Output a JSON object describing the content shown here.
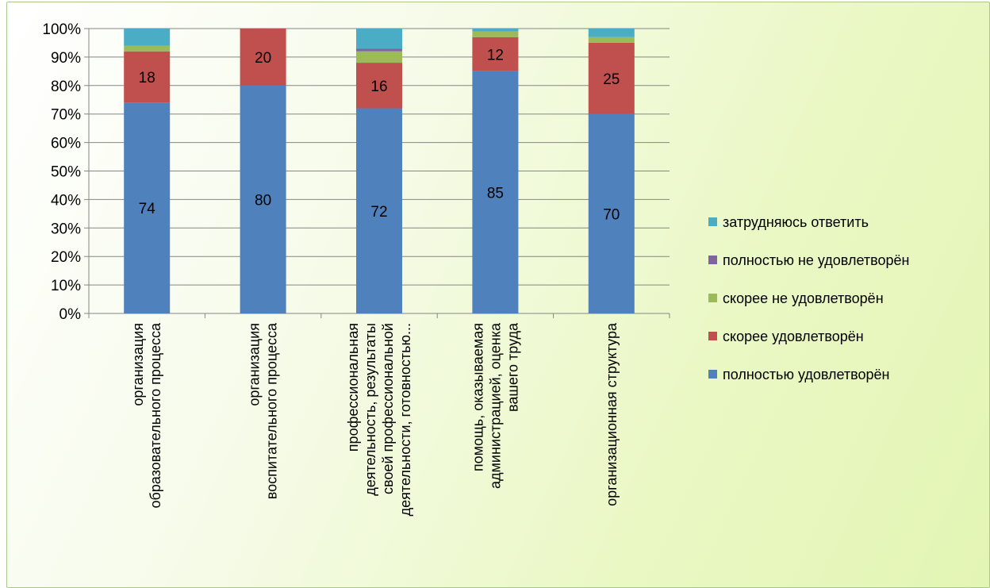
{
  "chart_data": {
    "type": "bar",
    "stacked": true,
    "percent_stacked": true,
    "categories": [
      [
        "организация",
        "образовательного процесса"
      ],
      [
        "организация",
        "воспитательного процесса"
      ],
      [
        "профессиональная",
        "деятельность, результаты",
        "своей профессиональной",
        "деятельности, готовностью..."
      ],
      [
        "помощь, оказываемая",
        "администрацией, оценка",
        "вашего труда"
      ],
      [
        "организационная структура"
      ]
    ],
    "series": [
      {
        "name": "полностью удовлетворён",
        "color": "#4f81bd",
        "values": [
          74,
          80,
          72,
          85,
          70
        ],
        "labels": [
          "74",
          "80",
          "72",
          "85",
          "70"
        ]
      },
      {
        "name": "скорее удовлетворён",
        "color": "#c0504d",
        "values": [
          18,
          20,
          16,
          12,
          25
        ],
        "labels": [
          "18",
          "20",
          "16",
          "12",
          "25"
        ]
      },
      {
        "name": "скорее не удовлетворён",
        "color": "#9bbb59",
        "values": [
          2,
          0,
          4,
          2,
          2
        ],
        "labels": [
          "",
          "",
          "",
          "",
          ""
        ]
      },
      {
        "name": "полностью не удовлетворён",
        "color": "#8064a2",
        "values": [
          0,
          0,
          1,
          0,
          0
        ],
        "labels": [
          "",
          "",
          "",
          "",
          ""
        ]
      },
      {
        "name": "затрудняюсь ответить",
        "color": "#4bacc6",
        "values": [
          6,
          0,
          7,
          1,
          3
        ],
        "labels": [
          "",
          "",
          "",
          "",
          ""
        ]
      }
    ],
    "y_ticks": [
      "0%",
      "10%",
      "20%",
      "30%",
      "40%",
      "50%",
      "60%",
      "70%",
      "80%",
      "90%",
      "100%"
    ],
    "ylim": [
      0,
      100
    ],
    "grid": true,
    "legend_position": "right",
    "legend_order": [
      4,
      3,
      2,
      1,
      0
    ]
  }
}
